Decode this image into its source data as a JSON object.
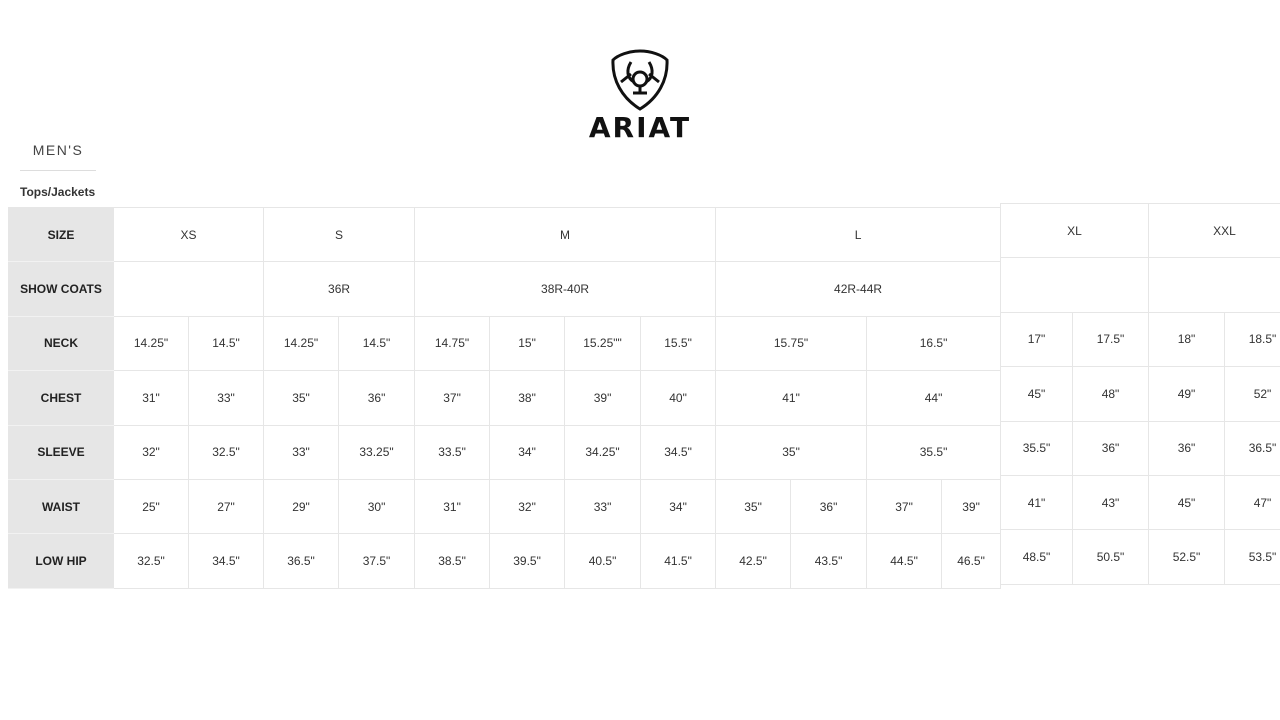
{
  "brand": {
    "name": "ARIAT"
  },
  "category": "MEN'S",
  "section_title": "Tops/Jackets",
  "main_table": {
    "rows": [
      {
        "label": "SIZE",
        "cells": [
          {
            "text": "XS",
            "span": 2
          },
          {
            "text": "S",
            "span": 2
          },
          {
            "text": "M",
            "span": 4
          },
          {
            "text": "L",
            "span": 4
          }
        ]
      },
      {
        "label": "SHOW COATS",
        "cells": [
          {
            "text": "",
            "span": 2
          },
          {
            "text": "36R",
            "span": 2
          },
          {
            "text": "38R-40R",
            "span": 4
          },
          {
            "text": "42R-44R",
            "span": 4
          }
        ]
      },
      {
        "label": "NECK",
        "cells": [
          {
            "text": "14.25\""
          },
          {
            "text": "14.5\""
          },
          {
            "text": "14.25\""
          },
          {
            "text": "14.5\""
          },
          {
            "text": "14.75\""
          },
          {
            "text": "15\""
          },
          {
            "text": "15.25\"\""
          },
          {
            "text": "15.5\""
          },
          {
            "text": "15.75\"",
            "span": 2
          },
          {
            "text": "16.5\"",
            "span": 2
          }
        ]
      },
      {
        "label": "CHEST",
        "cells": [
          {
            "text": "31\""
          },
          {
            "text": "33\""
          },
          {
            "text": "35\""
          },
          {
            "text": "36\""
          },
          {
            "text": "37\""
          },
          {
            "text": "38\""
          },
          {
            "text": "39\""
          },
          {
            "text": "40\""
          },
          {
            "text": "41\"",
            "span": 2
          },
          {
            "text": "44\"",
            "span": 2
          }
        ]
      },
      {
        "label": "SLEEVE",
        "cells": [
          {
            "text": "32\""
          },
          {
            "text": "32.5\""
          },
          {
            "text": "33\""
          },
          {
            "text": "33.25\""
          },
          {
            "text": "33.5\""
          },
          {
            "text": "34\""
          },
          {
            "text": "34.25\""
          },
          {
            "text": "34.5\""
          },
          {
            "text": "35\"",
            "span": 2
          },
          {
            "text": "35.5\"",
            "span": 2
          }
        ]
      },
      {
        "label": "WAIST",
        "cells": [
          {
            "text": "25\""
          },
          {
            "text": "27\""
          },
          {
            "text": "29\""
          },
          {
            "text": "30\""
          },
          {
            "text": "31\""
          },
          {
            "text": "32\""
          },
          {
            "text": "33\""
          },
          {
            "text": "34\""
          },
          {
            "text": "35\""
          },
          {
            "text": "36\""
          },
          {
            "text": "37\""
          },
          {
            "text": "39\""
          }
        ]
      },
      {
        "label": "LOW HIP",
        "cells": [
          {
            "text": "32.5\""
          },
          {
            "text": "34.5\""
          },
          {
            "text": "36.5\""
          },
          {
            "text": "37.5\""
          },
          {
            "text": "38.5\""
          },
          {
            "text": "39.5\""
          },
          {
            "text": "40.5\""
          },
          {
            "text": "41.5\""
          },
          {
            "text": "42.5\""
          },
          {
            "text": "43.5\""
          },
          {
            "text": "44.5\""
          },
          {
            "text": "46.5\""
          }
        ]
      }
    ]
  },
  "extended_table": {
    "rows": [
      {
        "cells": [
          {
            "text": "XL",
            "span": 2
          },
          {
            "text": "XXL",
            "span": 2
          }
        ]
      },
      {
        "cells": [
          {
            "text": "",
            "span": 2
          },
          {
            "text": "",
            "span": 2
          }
        ]
      },
      {
        "cells": [
          {
            "text": "17\""
          },
          {
            "text": "17.5\""
          },
          {
            "text": "18\""
          },
          {
            "text": "18.5\""
          }
        ]
      },
      {
        "cells": [
          {
            "text": "45\""
          },
          {
            "text": "48\""
          },
          {
            "text": "49\""
          },
          {
            "text": "52\""
          }
        ]
      },
      {
        "cells": [
          {
            "text": "35.5\""
          },
          {
            "text": "36\""
          },
          {
            "text": "36\""
          },
          {
            "text": "36.5\""
          }
        ]
      },
      {
        "cells": [
          {
            "text": "41\""
          },
          {
            "text": "43\""
          },
          {
            "text": "45\""
          },
          {
            "text": "47\""
          }
        ]
      },
      {
        "cells": [
          {
            "text": "48.5\""
          },
          {
            "text": "50.5\""
          },
          {
            "text": "52.5\""
          },
          {
            "text": "53.5\""
          }
        ]
      }
    ]
  }
}
